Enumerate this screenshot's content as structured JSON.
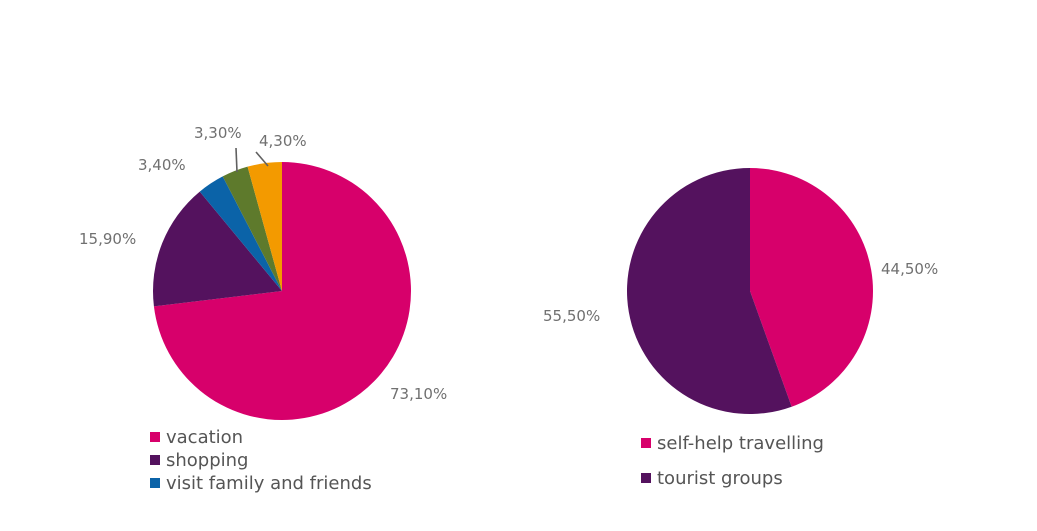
{
  "chart_data": [
    {
      "type": "pie",
      "categories": [
        "vacation",
        "shopping",
        "visit family and friends",
        "",
        ""
      ],
      "values": [
        73.1,
        15.9,
        3.4,
        3.3,
        4.3
      ],
      "data_labels": [
        "73,10%",
        "15,90%",
        "3,40%",
        "3,30%",
        "4,30%"
      ],
      "colors": [
        "#d7006b",
        "#54125e",
        "#0b63a8",
        "#5e7a2c",
        "#f39a00"
      ],
      "legend_entries": [
        "vacation",
        "shopping",
        "visit family and friends"
      ],
      "legend_colors": [
        "#d7006b",
        "#54125e",
        "#0b63a8"
      ],
      "legend": "bottom",
      "title": ""
    },
    {
      "type": "pie",
      "categories": [
        "self-help travelling",
        "tourist groups"
      ],
      "values": [
        44.5,
        55.5
      ],
      "data_labels": [
        "44,50%",
        "55,50%"
      ],
      "colors": [
        "#d7006b",
        "#54125e"
      ],
      "legend_entries": [
        "self-help travelling",
        "tourist groups"
      ],
      "legend_colors": [
        "#d7006b",
        "#54125e"
      ],
      "legend": "bottom",
      "title": ""
    }
  ]
}
